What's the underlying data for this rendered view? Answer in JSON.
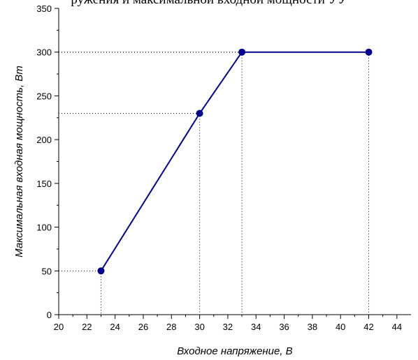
{
  "caption": "ружения и максимальной входной мощности УУ",
  "chart_data": {
    "type": "line",
    "xlabel": "Входное напряжение, В",
    "ylabel": "Максимальная входная мощность, Вт",
    "xlim": [
      20,
      45
    ],
    "ylim": [
      0,
      350
    ],
    "x_ticks": [
      20,
      22,
      24,
      26,
      28,
      30,
      32,
      34,
      36,
      38,
      40,
      42,
      44
    ],
    "y_ticks": [
      0,
      50,
      100,
      150,
      200,
      250,
      300,
      350
    ],
    "grid": false,
    "dotted_guides": true,
    "series": [
      {
        "x": [
          23,
          30,
          33,
          42
        ],
        "values": [
          50,
          230,
          300,
          300
        ],
        "color": "#00008B"
      }
    ]
  }
}
